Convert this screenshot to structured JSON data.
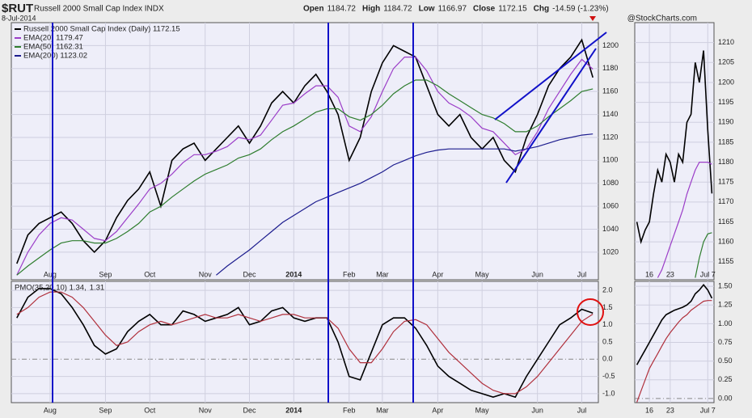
{
  "header": {
    "symbol": "$RUT",
    "name": "Russell 2000 Small Cap Index INDX",
    "date": "8-Jul-2014",
    "quote": [
      {
        "label": "Open",
        "value": 1184.72
      },
      {
        "label": "High",
        "value": 1184.72
      },
      {
        "label": "Low",
        "value": 1166.97
      },
      {
        "label": "Close",
        "value": 1172.15
      },
      {
        "label": "Chg",
        "value": "-14.59 (-1.23%)"
      }
    ],
    "source": "@StockCharts.com"
  },
  "chart_data": [
    {
      "type": "line",
      "categories": [
        null,
        null,
        null,
        "Aug",
        null,
        null,
        null,
        null,
        "Sep",
        null,
        null,
        null,
        "Oct",
        null,
        null,
        null,
        null,
        "Nov",
        null,
        null,
        null,
        "Dec",
        null,
        null,
        null,
        "2014",
        null,
        null,
        null,
        null,
        "Feb",
        null,
        null,
        "Mar",
        null,
        null,
        null,
        null,
        "Apr",
        null,
        null,
        null,
        "May",
        null,
        null,
        null,
        null,
        "Jun",
        null,
        null,
        null,
        "Jul",
        null
      ],
      "series": [
        {
          "name": "Russell 2000 Small Cap Index (Daily) 1172.15",
          "color": "#000000",
          "values": [
            1010,
            1035,
            1045,
            1050,
            1055,
            1045,
            1030,
            1020,
            1030,
            1050,
            1065,
            1075,
            1090,
            1060,
            1100,
            1110,
            1115,
            1100,
            1110,
            1120,
            1130,
            1115,
            1130,
            1150,
            1160,
            1150,
            1165,
            1175,
            1160,
            1140,
            1100,
            1120,
            1160,
            1185,
            1200,
            1195,
            1190,
            1165,
            1140,
            1130,
            1140,
            1120,
            1110,
            1120,
            1100,
            1090,
            1120,
            1140,
            1165,
            1180,
            1190,
            1205,
            1172.15
          ]
        },
        {
          "name": "EMA(20) 1179.47",
          "color": "#9b3dc8",
          "values": [
            1000,
            1020,
            1035,
            1045,
            1050,
            1048,
            1040,
            1032,
            1030,
            1038,
            1050,
            1062,
            1075,
            1080,
            1088,
            1098,
            1105,
            1105,
            1108,
            1112,
            1120,
            1118,
            1122,
            1135,
            1148,
            1150,
            1158,
            1165,
            1165,
            1155,
            1130,
            1125,
            1138,
            1160,
            1180,
            1190,
            1190,
            1178,
            1160,
            1150,
            1145,
            1138,
            1128,
            1125,
            1115,
            1105,
            1110,
            1125,
            1145,
            1160,
            1175,
            1188,
            1179.47
          ]
        },
        {
          "name": "EMA(50) 1162.31",
          "color": "#2e7d2e",
          "values": [
            1000,
            1008,
            1015,
            1022,
            1028,
            1030,
            1030,
            1028,
            1028,
            1032,
            1038,
            1045,
            1055,
            1060,
            1068,
            1075,
            1082,
            1088,
            1092,
            1096,
            1102,
            1105,
            1110,
            1118,
            1125,
            1130,
            1136,
            1142,
            1145,
            1145,
            1138,
            1135,
            1140,
            1148,
            1158,
            1165,
            1170,
            1170,
            1165,
            1158,
            1152,
            1146,
            1140,
            1137,
            1132,
            1125,
            1125,
            1130,
            1138,
            1145,
            1152,
            1160,
            1162.31
          ]
        },
        {
          "name": "EMA(200) 1123.02",
          "color": "#1c1c8e",
          "values": [
            null,
            null,
            null,
            null,
            null,
            null,
            null,
            null,
            null,
            null,
            null,
            null,
            null,
            null,
            null,
            null,
            null,
            null,
            1000,
            1008,
            1015,
            1022,
            1030,
            1038,
            1046,
            1052,
            1058,
            1064,
            1068,
            1072,
            1076,
            1080,
            1085,
            1090,
            1096,
            1100,
            1104,
            1107,
            1109,
            1110,
            1110,
            1110,
            1110,
            1110,
            1110,
            1108,
            1110,
            1112,
            1115,
            1118,
            1120,
            1122,
            1123.02
          ]
        }
      ],
      "ylim": [
        996,
        1220
      ],
      "yticks": [
        1020,
        1040,
        1060,
        1080,
        1100,
        1120,
        1140,
        1160,
        1180,
        1200
      ],
      "grid": true
    },
    {
      "type": "line",
      "categories": [
        null,
        null,
        null,
        "Aug",
        null,
        null,
        null,
        null,
        "Sep",
        null,
        null,
        null,
        "Oct",
        null,
        null,
        null,
        null,
        "Nov",
        null,
        null,
        null,
        "Dec",
        null,
        null,
        null,
        "2014",
        null,
        null,
        null,
        null,
        "Feb",
        null,
        null,
        "Mar",
        null,
        null,
        null,
        null,
        "Apr",
        null,
        null,
        null,
        "May",
        null,
        null,
        null,
        null,
        "Jun",
        null,
        null,
        null,
        "Jul",
        null
      ],
      "series": [
        {
          "name": "PMO(35,20,10) 1.34,",
          "color": "#000000",
          "values": [
            1.2,
            1.8,
            2.05,
            2.05,
            1.9,
            1.5,
            1.0,
            0.4,
            0.15,
            0.3,
            0.8,
            1.1,
            1.3,
            1.0,
            1.0,
            1.4,
            1.3,
            1.1,
            1.2,
            1.3,
            1.5,
            1.0,
            1.1,
            1.4,
            1.5,
            1.2,
            1.1,
            1.2,
            1.2,
            0.5,
            -0.5,
            -0.6,
            0.2,
            1.0,
            1.2,
            1.2,
            0.9,
            0.4,
            -0.2,
            -0.5,
            -0.7,
            -0.9,
            -1.0,
            -1.1,
            -1.0,
            -1.1,
            -0.5,
            0.0,
            0.5,
            1.0,
            1.2,
            1.45,
            1.34
          ]
        },
        {
          "name": "1.31",
          "color": "#b0303c",
          "values": [
            1.3,
            1.5,
            1.8,
            1.95,
            1.95,
            1.8,
            1.5,
            1.1,
            0.7,
            0.4,
            0.5,
            0.8,
            1.0,
            1.1,
            1.0,
            1.1,
            1.2,
            1.3,
            1.2,
            1.2,
            1.3,
            1.2,
            1.1,
            1.2,
            1.3,
            1.3,
            1.2,
            1.2,
            1.2,
            0.9,
            0.3,
            -0.1,
            -0.1,
            0.3,
            0.8,
            1.1,
            1.15,
            1.0,
            0.6,
            0.2,
            -0.1,
            -0.4,
            -0.7,
            -0.9,
            -1.0,
            -1.0,
            -0.8,
            -0.5,
            -0.1,
            0.3,
            0.7,
            1.1,
            1.31
          ]
        }
      ],
      "ylim": [
        -1.26,
        2.26
      ],
      "yticks": [
        {
          "value": 2,
          "label": "2.0"
        },
        {
          "value": 1.5,
          "label": "1.5"
        },
        {
          "value": 1,
          "label": "1.0"
        },
        {
          "value": 0.5,
          "label": "0.5"
        },
        {
          "value": 0,
          "label": "0.0"
        },
        {
          "value": -0.5,
          "label": "-0.5"
        },
        {
          "value": -1,
          "label": "-1.0"
        }
      ],
      "grid": true
    },
    {
      "type": "line",
      "categories": [
        null,
        null,
        null,
        "16",
        null,
        null,
        null,
        null,
        "23",
        null,
        null,
        null,
        null,
        null,
        null,
        null,
        null,
        "Jul 7",
        null
      ],
      "series": [
        {
          "color": "#000000",
          "values": [
            1165,
            1160,
            1163,
            1165,
            1172,
            1178,
            1175,
            1182,
            1180,
            1175,
            1182,
            1180,
            1190,
            1192,
            1205,
            1200,
            1208,
            1188,
            1172.15
          ]
        },
        {
          "color": "#9b3dc8",
          "values": [
            null,
            null,
            null,
            null,
            null,
            1151,
            1153,
            1156,
            1159,
            1162,
            1165,
            1168,
            1172,
            1175,
            1178,
            1180,
            1180,
            1180,
            1179.47
          ]
        },
        {
          "color": "#2e7d2e",
          "values": [
            null,
            null,
            null,
            null,
            null,
            null,
            null,
            null,
            null,
            null,
            null,
            null,
            null,
            null,
            1151,
            1156,
            1160,
            1162,
            1162.31
          ]
        }
      ],
      "ylim": [
        1150.5,
        1215
      ],
      "yticks": [
        1155,
        1160,
        1165,
        1170,
        1175,
        1180,
        1185,
        1190,
        1195,
        1200,
        1205,
        1210
      ],
      "grid": true
    },
    {
      "type": "line",
      "categories": [
        null,
        null,
        null,
        "16",
        null,
        null,
        null,
        null,
        "23",
        null,
        null,
        null,
        null,
        null,
        null,
        null,
        null,
        "Jul 7",
        null
      ],
      "series": [
        {
          "color": "#000000",
          "values": [
            0.45,
            0.55,
            0.65,
            0.75,
            0.85,
            0.95,
            1.05,
            1.12,
            1.15,
            1.18,
            1.2,
            1.22,
            1.25,
            1.3,
            1.4,
            1.45,
            1.52,
            1.45,
            1.34
          ]
        },
        {
          "color": "#b0303c",
          "values": [
            -0.05,
            0.1,
            0.25,
            0.4,
            0.5,
            0.6,
            0.7,
            0.8,
            0.88,
            0.95,
            1.02,
            1.08,
            1.12,
            1.18,
            1.22,
            1.26,
            1.3,
            1.31,
            1.31
          ]
        }
      ],
      "ylim": [
        -0.055,
        1.566
      ],
      "yticks": [
        {
          "value": 1.5,
          "label": "1.50"
        },
        {
          "value": 1.25,
          "label": "1.25"
        },
        {
          "value": 1,
          "label": "1.00"
        },
        {
          "value": 0.75,
          "label": "0.75"
        },
        {
          "value": 0.5,
          "label": "0.50"
        },
        {
          "value": 0.25,
          "label": "0.25"
        },
        {
          "value": 0,
          "label": "0.00"
        }
      ],
      "grid": true
    }
  ]
}
